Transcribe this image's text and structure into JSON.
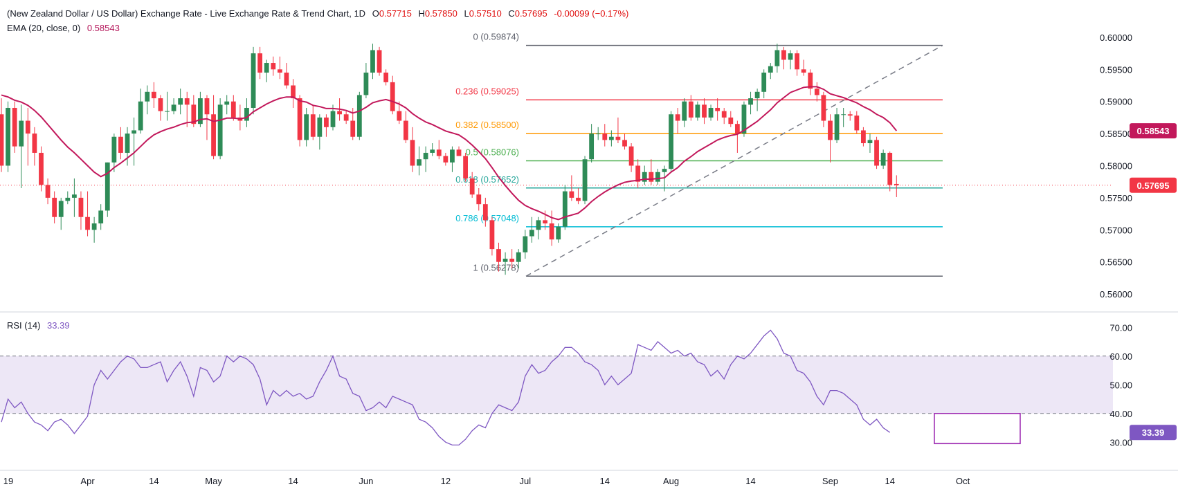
{
  "header": {
    "title": "(New Zealand Dollar / US Dollar) Exchange Rate - Live Exchange Rate & Trend Chart, 1D",
    "ohlc": [
      {
        "label": "O",
        "value": "0.57715"
      },
      {
        "label": "H",
        "value": "0.57850"
      },
      {
        "label": "L",
        "value": "0.57510"
      },
      {
        "label": "C",
        "value": "0.57695"
      }
    ],
    "change": "-0.00099 (−0.17%)",
    "ema_label": "EMA (20, close, 0)",
    "ema_value": "0.58543",
    "rsi_label": "RSI (14)",
    "rsi_value": "33.39"
  },
  "colors": {
    "up": "#26a69a",
    "up_body": "#2e8b57",
    "down": "#f23645",
    "ema": "#c2185b",
    "rsi": "#7e57c2",
    "rsi_band": "#ede7f6",
    "grid": "#e0e3eb",
    "fib_0": "#5d606b",
    "fib_236": "#f23645",
    "fib_382": "#ff9800",
    "fib_5": "#4caf50",
    "fib_618": "#26a69a",
    "fib_786": "#00bcd4",
    "fib_1": "#5d606b"
  },
  "chart_data": [
    {
      "type": "candlestick",
      "price_axis": {
        "ticks": [
          "0.60000",
          "0.59500",
          "0.59000",
          "0.58500",
          "0.58000",
          "0.57500",
          "0.57000",
          "0.56500",
          "0.56000"
        ],
        "range": [
          0.5585,
          0.6015
        ]
      },
      "x_axis_ticks": [
        "19",
        "Apr",
        "14",
        "May",
        "14",
        "Jun",
        "12",
        "Jul",
        "14",
        "Aug",
        "14",
        "Sep",
        "14",
        "Oct"
      ],
      "candles": [
        [
          0.588,
          0.5905,
          0.579,
          0.58
        ],
        [
          0.58,
          0.59,
          0.579,
          0.589
        ],
        [
          0.589,
          0.59,
          0.582,
          0.583
        ],
        [
          0.583,
          0.5895,
          0.5765,
          0.587
        ],
        [
          0.587,
          0.589,
          0.58,
          0.585
        ],
        [
          0.585,
          0.586,
          0.58,
          0.582
        ],
        [
          0.582,
          0.583,
          0.576,
          0.577
        ],
        [
          0.577,
          0.578,
          0.574,
          0.575
        ],
        [
          0.575,
          0.576,
          0.571,
          0.572
        ],
        [
          0.572,
          0.575,
          0.57,
          0.5745
        ],
        [
          0.5745,
          0.576,
          0.574,
          0.575
        ],
        [
          0.575,
          0.578,
          0.572,
          0.5755
        ],
        [
          0.575,
          0.576,
          0.57,
          0.572
        ],
        [
          0.572,
          0.576,
          0.569,
          0.57
        ],
        [
          0.57,
          0.572,
          0.568,
          0.571
        ],
        [
          0.571,
          0.574,
          0.57,
          0.573
        ],
        [
          0.573,
          0.5805,
          0.572,
          0.5805
        ],
        [
          0.5805,
          0.585,
          0.579,
          0.5845
        ],
        [
          0.5845,
          0.586,
          0.581,
          0.582
        ],
        [
          0.582,
          0.586,
          0.58,
          0.585
        ],
        [
          0.585,
          0.5875,
          0.58,
          0.5855
        ],
        [
          0.5855,
          0.592,
          0.585,
          0.59
        ],
        [
          0.59,
          0.5925,
          0.588,
          0.5915
        ],
        [
          0.5915,
          0.593,
          0.589,
          0.5905
        ],
        [
          0.5905,
          0.591,
          0.587,
          0.5885
        ],
        [
          0.5885,
          0.5915,
          0.587,
          0.5885
        ],
        [
          0.5885,
          0.5905,
          0.588,
          0.5895
        ],
        [
          0.5895,
          0.592,
          0.588,
          0.5905
        ],
        [
          0.5905,
          0.5915,
          0.586,
          0.5895
        ],
        [
          0.5895,
          0.591,
          0.586,
          0.5865
        ],
        [
          0.5865,
          0.5915,
          0.586,
          0.5905
        ],
        [
          0.5905,
          0.591,
          0.584,
          0.588
        ],
        [
          0.588,
          0.591,
          0.581,
          0.5815
        ],
        [
          0.5815,
          0.5905,
          0.581,
          0.5895
        ],
        [
          0.5895,
          0.591,
          0.588,
          0.59
        ],
        [
          0.59,
          0.591,
          0.587,
          0.5875
        ],
        [
          0.5875,
          0.5895,
          0.5855,
          0.587
        ],
        [
          0.587,
          0.5905,
          0.586,
          0.589
        ],
        [
          0.589,
          0.5985,
          0.588,
          0.5975
        ],
        [
          0.5975,
          0.5985,
          0.5935,
          0.5945
        ],
        [
          0.5945,
          0.5965,
          0.593,
          0.596
        ],
        [
          0.596,
          0.597,
          0.594,
          0.595
        ],
        [
          0.595,
          0.597,
          0.5935,
          0.5945
        ],
        [
          0.5945,
          0.596,
          0.592,
          0.5925
        ],
        [
          0.5925,
          0.5935,
          0.589,
          0.5905
        ],
        [
          0.5905,
          0.591,
          0.583,
          0.584
        ],
        [
          0.584,
          0.589,
          0.583,
          0.588
        ],
        [
          0.588,
          0.5895,
          0.584,
          0.5845
        ],
        [
          0.5845,
          0.588,
          0.5825,
          0.5875
        ],
        [
          0.5875,
          0.588,
          0.5845,
          0.586
        ],
        [
          0.586,
          0.5895,
          0.5855,
          0.5885
        ],
        [
          0.5885,
          0.5905,
          0.587,
          0.588
        ],
        [
          0.588,
          0.5885,
          0.5865,
          0.587
        ],
        [
          0.587,
          0.589,
          0.584,
          0.5845
        ],
        [
          0.5845,
          0.5915,
          0.584,
          0.591
        ],
        [
          0.591,
          0.596,
          0.5905,
          0.5945
        ],
        [
          0.5945,
          0.599,
          0.5935,
          0.598
        ],
        [
          0.598,
          0.5985,
          0.594,
          0.5945
        ],
        [
          0.5945,
          0.595,
          0.5925,
          0.593
        ],
        [
          0.593,
          0.594,
          0.588,
          0.5885
        ],
        [
          0.5885,
          0.59,
          0.5865,
          0.587
        ],
        [
          0.587,
          0.5885,
          0.5835,
          0.584
        ],
        [
          0.584,
          0.586,
          0.579,
          0.58
        ],
        [
          0.58,
          0.583,
          0.5785,
          0.581
        ],
        [
          0.581,
          0.583,
          0.579,
          0.582
        ],
        [
          0.582,
          0.5835,
          0.5815,
          0.5825
        ],
        [
          0.5825,
          0.584,
          0.581,
          0.5815
        ],
        [
          0.5815,
          0.582,
          0.58,
          0.5805
        ],
        [
          0.5805,
          0.583,
          0.579,
          0.5825
        ],
        [
          0.5825,
          0.583,
          0.5815,
          0.5815
        ],
        [
          0.5815,
          0.582,
          0.5775,
          0.578
        ],
        [
          0.578,
          0.579,
          0.575,
          0.5755
        ],
        [
          0.5755,
          0.5765,
          0.573,
          0.574
        ],
        [
          0.574,
          0.575,
          0.5705,
          0.5715
        ],
        [
          0.5715,
          0.572,
          0.566,
          0.567
        ],
        [
          0.567,
          0.568,
          0.5635,
          0.565
        ],
        [
          0.565,
          0.5665,
          0.563,
          0.5655
        ],
        [
          0.5655,
          0.567,
          0.564,
          0.565
        ],
        [
          0.565,
          0.567,
          0.564,
          0.5665
        ],
        [
          0.5665,
          0.57,
          0.5655,
          0.569
        ],
        [
          0.569,
          0.572,
          0.568,
          0.57
        ],
        [
          0.57,
          0.572,
          0.5685,
          0.5715
        ],
        [
          0.5715,
          0.573,
          0.57,
          0.571
        ],
        [
          0.571,
          0.573,
          0.5675,
          0.5685
        ],
        [
          0.5685,
          0.571,
          0.568,
          0.5705
        ],
        [
          0.5705,
          0.577,
          0.57,
          0.576
        ],
        [
          0.576,
          0.5785,
          0.5745,
          0.575
        ],
        [
          0.575,
          0.5765,
          0.574,
          0.5745
        ],
        [
          0.5745,
          0.5815,
          0.574,
          0.581
        ],
        [
          0.581,
          0.5865,
          0.5805,
          0.585
        ],
        [
          0.585,
          0.586,
          0.584,
          0.585
        ],
        [
          0.585,
          0.5865,
          0.583,
          0.584
        ],
        [
          0.584,
          0.5855,
          0.583,
          0.5845
        ],
        [
          0.5845,
          0.5875,
          0.5835,
          0.584
        ],
        [
          0.584,
          0.585,
          0.5825,
          0.583
        ],
        [
          0.583,
          0.5835,
          0.579,
          0.58
        ],
        [
          0.58,
          0.581,
          0.5765,
          0.5775
        ],
        [
          0.5775,
          0.58,
          0.577,
          0.579
        ],
        [
          0.579,
          0.581,
          0.577,
          0.5775
        ],
        [
          0.5775,
          0.5795,
          0.577,
          0.579
        ],
        [
          0.579,
          0.58,
          0.576,
          0.5795
        ],
        [
          0.5795,
          0.5885,
          0.579,
          0.588
        ],
        [
          0.588,
          0.589,
          0.585,
          0.587
        ],
        [
          0.587,
          0.5905,
          0.586,
          0.59
        ],
        [
          0.59,
          0.591,
          0.587,
          0.5875
        ],
        [
          0.5875,
          0.59,
          0.587,
          0.5895
        ],
        [
          0.5895,
          0.5905,
          0.5865,
          0.5875
        ],
        [
          0.5875,
          0.5895,
          0.587,
          0.589
        ],
        [
          0.589,
          0.5905,
          0.587,
          0.5885
        ],
        [
          0.5885,
          0.589,
          0.5865,
          0.5875
        ],
        [
          0.5875,
          0.5885,
          0.586,
          0.5865
        ],
        [
          0.5865,
          0.587,
          0.582,
          0.585
        ],
        [
          0.585,
          0.59,
          0.5845,
          0.5895
        ],
        [
          0.5895,
          0.5915,
          0.588,
          0.5905
        ],
        [
          0.5905,
          0.592,
          0.5885,
          0.5915
        ],
        [
          0.5915,
          0.595,
          0.5905,
          0.5945
        ],
        [
          0.5945,
          0.596,
          0.5935,
          0.5955
        ],
        [
          0.5955,
          0.599,
          0.5945,
          0.598
        ],
        [
          0.598,
          0.5985,
          0.595,
          0.5965
        ],
        [
          0.5965,
          0.598,
          0.595,
          0.5975
        ],
        [
          0.5975,
          0.598,
          0.594,
          0.595
        ],
        [
          0.595,
          0.5965,
          0.594,
          0.5945
        ],
        [
          0.5945,
          0.595,
          0.591,
          0.592
        ],
        [
          0.592,
          0.593,
          0.59,
          0.591
        ],
        [
          0.591,
          0.5915,
          0.586,
          0.587
        ],
        [
          0.587,
          0.588,
          0.5805,
          0.584
        ],
        [
          0.584,
          0.589,
          0.5835,
          0.588
        ],
        [
          0.588,
          0.589,
          0.586,
          0.588
        ],
        [
          0.588,
          0.5885,
          0.587,
          0.5878
        ],
        [
          0.5878,
          0.5885,
          0.585,
          0.5855
        ],
        [
          0.5855,
          0.586,
          0.583,
          0.5835
        ],
        [
          0.5835,
          0.585,
          0.582,
          0.584
        ],
        [
          0.584,
          0.5845,
          0.5795,
          0.58
        ],
        [
          0.58,
          0.5825,
          0.5795,
          0.582
        ],
        [
          0.582,
          0.5822,
          0.576,
          0.577
        ],
        [
          0.57715,
          0.5785,
          0.5751,
          0.57695
        ]
      ],
      "ema": [
        0.591,
        0.5907,
        0.5902,
        0.5899,
        0.5894,
        0.5886,
        0.5876,
        0.5864,
        0.5852,
        0.584,
        0.5829,
        0.582,
        0.581,
        0.58,
        0.579,
        0.5783,
        0.5788,
        0.5797,
        0.5804,
        0.5812,
        0.582,
        0.583,
        0.584,
        0.5848,
        0.5853,
        0.5857,
        0.586,
        0.5864,
        0.5867,
        0.5868,
        0.5872,
        0.5873,
        0.5869,
        0.5871,
        0.5874,
        0.5874,
        0.5873,
        0.5875,
        0.5884,
        0.589,
        0.5896,
        0.5901,
        0.5905,
        0.5907,
        0.5907,
        0.5901,
        0.5899,
        0.5894,
        0.5892,
        0.5889,
        0.5889,
        0.5888,
        0.5886,
        0.5882,
        0.5885,
        0.5891,
        0.5898,
        0.5901,
        0.5903,
        0.59,
        0.5896,
        0.589,
        0.5881,
        0.5874,
        0.5868,
        0.5864,
        0.5859,
        0.5854,
        0.5851,
        0.5848,
        0.5841,
        0.5832,
        0.5822,
        0.5811,
        0.5797,
        0.5782,
        0.5769,
        0.5757,
        0.5746,
        0.5738,
        0.5733,
        0.5729,
        0.5724,
        0.5719,
        0.5716,
        0.572,
        0.5723,
        0.5726,
        0.5734,
        0.5744,
        0.5752,
        0.5759,
        0.5765,
        0.577,
        0.5774,
        0.5776,
        0.5777,
        0.5779,
        0.5779,
        0.578,
        0.5781,
        0.579,
        0.5797,
        0.5807,
        0.5814,
        0.5822,
        0.5828,
        0.5834,
        0.584,
        0.5844,
        0.5847,
        0.5849,
        0.5855,
        0.5862,
        0.5869,
        0.5878,
        0.5887,
        0.5898,
        0.5906,
        0.5914,
        0.5918,
        0.5922,
        0.5923,
        0.5923,
        0.5919,
        0.5912,
        0.5909,
        0.5906,
        0.5902,
        0.5898,
        0.5892,
        0.5887,
        0.588,
        0.5875,
        0.5867,
        0.58543
      ],
      "last_price_label": "0.57695",
      "ema_label": "0.58543"
    },
    {
      "type": "fibonacci_retracement",
      "levels": [
        {
          "ratio": "0",
          "price": 0.59874,
          "label": "0 (0.59874)"
        },
        {
          "ratio": "0.236",
          "price": 0.59025,
          "label": "0.236 (0.59025)"
        },
        {
          "ratio": "0.382",
          "price": 0.585,
          "label": "0.382 (0.58500)"
        },
        {
          "ratio": "0.5",
          "price": 0.58076,
          "label": "0.5 (0.58076)"
        },
        {
          "ratio": "0.618",
          "price": 0.57652,
          "label": "0.618 (0.57652)"
        },
        {
          "ratio": "0.786",
          "price": 0.57048,
          "label": "0.786 (0.57048)"
        },
        {
          "ratio": "1",
          "price": 0.56278,
          "label": "1 (0.56278)"
        }
      ]
    },
    {
      "type": "line",
      "name": "RSI (14)",
      "y_axis_ticks": [
        "70.00",
        "60.00",
        "50.00",
        "40.00",
        "30.00"
      ],
      "range": [
        25,
        72
      ],
      "overbought": 60,
      "oversold": 40,
      "values": [
        37,
        45,
        42,
        44,
        40,
        37,
        36,
        34,
        37,
        38,
        36,
        33,
        36,
        39,
        50,
        55,
        52,
        55,
        58,
        60,
        59,
        56,
        56,
        57,
        58,
        51,
        55,
        58,
        53,
        46,
        56,
        55,
        51,
        53,
        60,
        58,
        60,
        59,
        57,
        52,
        43,
        48,
        46,
        48,
        46,
        47,
        45,
        46,
        51,
        55,
        60,
        53,
        52,
        47,
        46,
        41,
        42,
        44,
        42,
        46,
        45,
        44,
        43,
        38,
        37,
        35,
        32,
        30,
        29,
        29,
        31,
        34,
        36,
        35,
        40,
        43,
        42,
        41,
        44,
        53,
        57,
        54,
        55,
        58,
        60,
        63,
        63,
        61,
        58,
        57,
        55,
        50,
        53,
        50,
        52,
        54,
        64,
        63,
        62,
        65,
        63,
        61,
        62,
        60,
        61,
        58,
        57,
        53,
        55,
        52,
        57,
        60,
        59,
        61,
        64,
        67,
        69,
        66,
        61,
        60,
        55,
        54,
        51,
        46,
        43,
        48,
        48,
        47,
        45,
        43,
        38,
        36,
        38,
        35,
        33.39
      ],
      "last_label": "33.39"
    }
  ],
  "rsi_value_label": "33.39"
}
